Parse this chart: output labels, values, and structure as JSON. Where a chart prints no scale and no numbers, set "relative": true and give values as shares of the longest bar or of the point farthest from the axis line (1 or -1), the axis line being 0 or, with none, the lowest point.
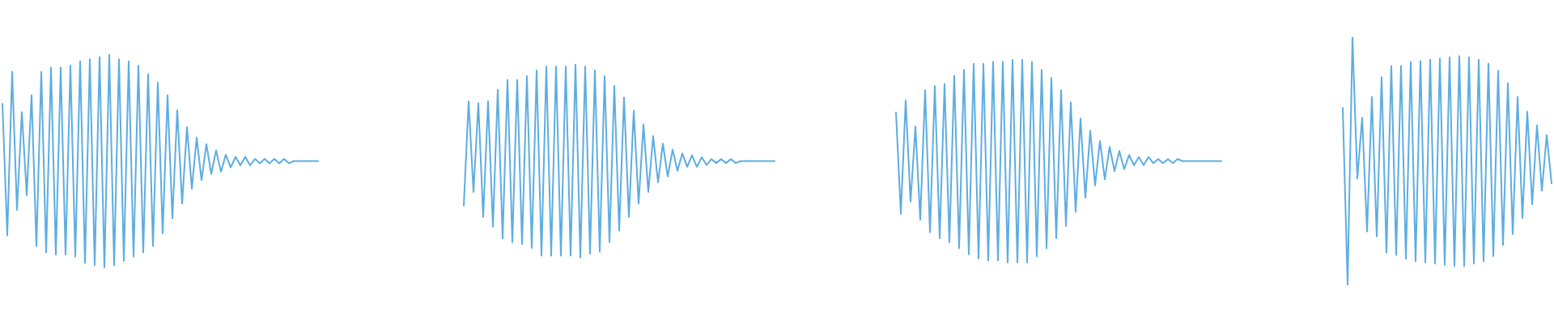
{
  "chart_data": [
    {
      "type": "line",
      "relative": true,
      "tick_labels": false,
      "color": "#5dade2",
      "categories": [
        null,
        null,
        null,
        null,
        null,
        null,
        null,
        null,
        null,
        null,
        null,
        null,
        null,
        null,
        null,
        null,
        null,
        null,
        null,
        null,
        null,
        null,
        null,
        null,
        null,
        null,
        null,
        null,
        null,
        null,
        null,
        null,
        null,
        null,
        null,
        null,
        null,
        null,
        null,
        null,
        null,
        null,
        null,
        null,
        null,
        null,
        null,
        null,
        null,
        null,
        null,
        null,
        null,
        null,
        null,
        null,
        null,
        null,
        null,
        null,
        null,
        null,
        null,
        null,
        null,
        null
      ],
      "values": [
        0.77,
        0.15,
        0.92,
        0.27,
        0.73,
        0.34,
        0.81,
        0.1,
        0.92,
        0.07,
        0.94,
        0.06,
        0.94,
        0.06,
        0.95,
        0.05,
        0.97,
        0.02,
        0.98,
        0.01,
        0.99,
        0,
        1,
        0.01,
        0.98,
        0.03,
        0.97,
        0.05,
        0.95,
        0.07,
        0.91,
        0.1,
        0.87,
        0.16,
        0.81,
        0.23,
        0.74,
        0.3,
        0.66,
        0.37,
        0.61,
        0.41,
        0.58,
        0.44,
        0.55,
        0.45,
        0.53,
        0.47,
        0.52,
        0.48,
        0.52,
        0.48,
        0.51,
        0.49,
        0.51,
        0.49,
        0.51,
        0.49,
        0.51,
        0.49,
        0.5,
        0.5,
        0.5,
        0.5,
        0.5,
        0.5
      ]
    },
    {
      "type": "line",
      "relative": true,
      "tick_labels": false,
      "color": "#5dade2",
      "categories": [
        null,
        null,
        null,
        null,
        null,
        null,
        null,
        null,
        null,
        null,
        null,
        null,
        null,
        null,
        null,
        null,
        null,
        null,
        null,
        null,
        null,
        null,
        null,
        null,
        null,
        null,
        null,
        null,
        null,
        null,
        null,
        null,
        null,
        null,
        null,
        null,
        null,
        null,
        null,
        null,
        null,
        null,
        null,
        null,
        null,
        null,
        null,
        null,
        null,
        null,
        null,
        null,
        null,
        null,
        null,
        null,
        null,
        null,
        null,
        null,
        null,
        null,
        null,
        null,
        null
      ],
      "values": [
        0.27,
        0.81,
        0.34,
        0.8,
        0.21,
        0.81,
        0.16,
        0.87,
        0.1,
        0.92,
        0.08,
        0.92,
        0.07,
        0.94,
        0.05,
        0.97,
        0.01,
        0.99,
        0.01,
        0.99,
        0.01,
        0.99,
        0.01,
        1,
        0,
        0.99,
        0.02,
        0.97,
        0.03,
        0.94,
        0.08,
        0.89,
        0.14,
        0.83,
        0.21,
        0.76,
        0.28,
        0.69,
        0.34,
        0.63,
        0.39,
        0.59,
        0.42,
        0.56,
        0.45,
        0.54,
        0.47,
        0.53,
        0.47,
        0.52,
        0.48,
        0.51,
        0.49,
        0.51,
        0.49,
        0.51,
        0.49,
        0.5,
        0.5,
        0.5,
        0.5,
        0.5,
        0.5,
        0.5,
        0.5
      ]
    },
    {
      "type": "line",
      "relative": true,
      "tick_labels": false,
      "color": "#5dade2",
      "categories": [
        null,
        null,
        null,
        null,
        null,
        null,
        null,
        null,
        null,
        null,
        null,
        null,
        null,
        null,
        null,
        null,
        null,
        null,
        null,
        null,
        null,
        null,
        null,
        null,
        null,
        null,
        null,
        null,
        null,
        null,
        null,
        null,
        null,
        null,
        null,
        null,
        null,
        null,
        null,
        null,
        null,
        null,
        null,
        null,
        null,
        null,
        null,
        null,
        null,
        null,
        null,
        null,
        null,
        null,
        null,
        null,
        null,
        null,
        null,
        null,
        null,
        null,
        null,
        null,
        null,
        null,
        null,
        null
      ],
      "values": [
        0.74,
        0.24,
        0.8,
        0.3,
        0.67,
        0.21,
        0.85,
        0.15,
        0.87,
        0.12,
        0.88,
        0.1,
        0.92,
        0.07,
        0.95,
        0.04,
        0.98,
        0.02,
        0.98,
        0.01,
        0.99,
        0.01,
        0.99,
        0,
        1,
        0,
        1,
        0,
        0.99,
        0.03,
        0.95,
        0.07,
        0.91,
        0.12,
        0.85,
        0.18,
        0.79,
        0.25,
        0.71,
        0.32,
        0.65,
        0.38,
        0.6,
        0.41,
        0.57,
        0.45,
        0.55,
        0.46,
        0.53,
        0.48,
        0.52,
        0.48,
        0.52,
        0.49,
        0.51,
        0.49,
        0.51,
        0.49,
        0.51,
        0.5,
        0.5,
        0.5,
        0.5,
        0.5,
        0.5,
        0.5,
        0.5,
        0.5
      ]
    },
    {
      "type": "line",
      "relative": true,
      "tick_labels": false,
      "color": "#5dade2",
      "categories": [
        null,
        null,
        null,
        null,
        null,
        null,
        null,
        null,
        null,
        null,
        null,
        null,
        null,
        null,
        null,
        null,
        null,
        null,
        null,
        null,
        null,
        null,
        null,
        null,
        null,
        null,
        null,
        null,
        null,
        null,
        null,
        null,
        null,
        null,
        null,
        null,
        null,
        null,
        null,
        null,
        null,
        null,
        null,
        null
      ],
      "values": [
        0.715,
        0,
        1,
        0.43,
        0.675,
        0.215,
        0.76,
        0.195,
        0.84,
        0.13,
        0.885,
        0.12,
        0.885,
        0.105,
        0.9,
        0.095,
        0.905,
        0.09,
        0.91,
        0.085,
        0.915,
        0.08,
        0.92,
        0.075,
        0.925,
        0.075,
        0.92,
        0.085,
        0.91,
        0.095,
        0.895,
        0.115,
        0.865,
        0.16,
        0.815,
        0.205,
        0.76,
        0.27,
        0.7,
        0.325,
        0.645,
        0.38,
        0.605,
        0.41
      ]
    }
  ]
}
